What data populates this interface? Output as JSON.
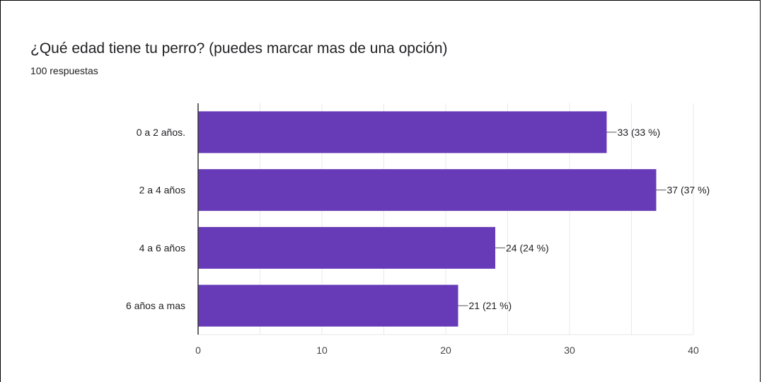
{
  "header": {
    "title": "¿Qué edad tiene tu perro?  (puedes marcar mas de una opción)",
    "subtitle": "100 respuestas"
  },
  "colors": {
    "bar": "#673ab7",
    "grid": "#e8e8e8",
    "axis": "#333333"
  },
  "chart_data": {
    "type": "bar",
    "orientation": "horizontal",
    "categories": [
      "0 a 2 años.",
      "2 a 4 años",
      "4 a 6 años",
      "6 años a mas"
    ],
    "values": [
      33,
      37,
      24,
      21
    ],
    "data_labels": [
      "33 (33 %)",
      "37 (37 %)",
      "24 (24 %)",
      "21 (21 %)"
    ],
    "xlim": [
      0,
      40
    ],
    "xticks": [
      0,
      10,
      20,
      30,
      40
    ],
    "grid": true,
    "legend": "none"
  }
}
